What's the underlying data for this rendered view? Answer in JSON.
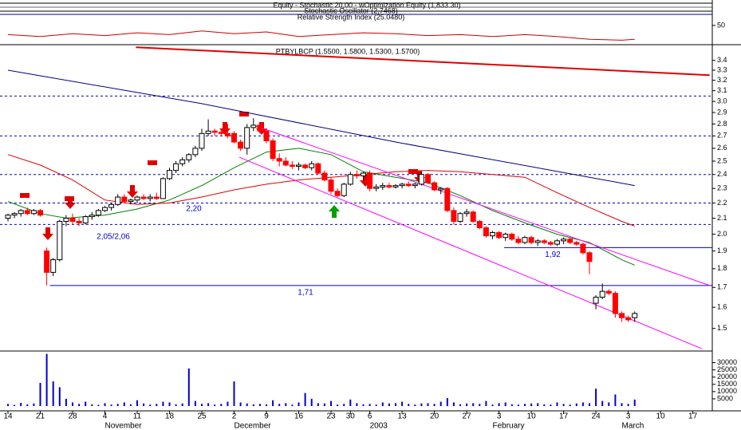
{
  "chart_data": [
    {
      "type": "line",
      "texts": [
        "Equity - Stochastic 20,00 - wOptimization Equity (1,833.30)",
        "Stochastic Oscillator (2,7468)",
        "Relative Strength Index (25.0480)"
      ],
      "x": [
        0,
        5,
        10,
        15,
        20,
        25,
        30,
        35,
        40,
        45,
        50,
        55,
        60,
        65,
        70,
        75,
        80,
        85,
        90,
        95,
        97
      ],
      "values": [
        40,
        38,
        41,
        39,
        42,
        40,
        44,
        41,
        43,
        38,
        40,
        42,
        41,
        39,
        40,
        38,
        40,
        38,
        35,
        34,
        35
      ],
      "color": "#cc0000",
      "ylim": [
        30,
        62
      ],
      "yticks": [
        50
      ]
    },
    {
      "type": "candlestick",
      "title": "PTBYLBCP (1.5500, 1.5800, 1.5300, 1.5700)",
      "categories": [
        "14",
        null,
        null,
        null,
        null,
        "21",
        null,
        null,
        null,
        null,
        "28",
        null,
        null,
        null,
        null,
        "4",
        null,
        null,
        null,
        null,
        "11",
        null,
        null,
        null,
        null,
        "18",
        null,
        null,
        null,
        null,
        "25",
        null,
        null,
        null,
        null,
        "2",
        null,
        null,
        null,
        null,
        "9",
        null,
        null,
        null,
        null,
        "16",
        null,
        null,
        null,
        null,
        "23",
        null,
        null,
        "30",
        null,
        null,
        "6",
        null,
        null,
        null,
        null,
        "13",
        null,
        null,
        null,
        null,
        "20",
        null,
        null,
        null,
        null,
        "27",
        null,
        null,
        null,
        null,
        "3",
        null,
        null,
        null,
        null,
        "10",
        null,
        null,
        null,
        null,
        "17",
        null,
        null,
        null,
        null,
        "24",
        null,
        null,
        null,
        null,
        "3",
        null,
        null,
        null,
        null,
        "10",
        null,
        null,
        null,
        null,
        "17",
        null
      ],
      "months": [
        null,
        null,
        null,
        null,
        null,
        null,
        null,
        null,
        null,
        null,
        null,
        null,
        null,
        null,
        null,
        "November",
        null,
        null,
        null,
        null,
        null,
        null,
        null,
        null,
        null,
        null,
        null,
        null,
        null,
        null,
        null,
        null,
        null,
        null,
        null,
        "December",
        null,
        null,
        null,
        null,
        null,
        null,
        null,
        null,
        null,
        null,
        null,
        null,
        null,
        null,
        null,
        null,
        null,
        null,
        null,
        null,
        "2003",
        null,
        null,
        null,
        null,
        null,
        null,
        null,
        null,
        null,
        null,
        null,
        null,
        null,
        null,
        null,
        null,
        null,
        null,
        "February",
        null,
        null,
        null,
        null,
        null,
        null,
        null,
        null,
        null,
        null,
        null,
        null,
        null,
        null,
        null,
        null,
        null,
        null,
        null,
        "March",
        null,
        null,
        null,
        null,
        null,
        null,
        null,
        null,
        null,
        null,
        null
      ],
      "open": [
        2.1,
        2.12,
        2.13,
        2.15,
        2.13,
        2.15,
        1.9,
        1.78,
        1.85,
        2.08,
        2.1,
        2.08,
        2.07,
        2.11,
        2.12,
        2.15,
        2.17,
        2.19,
        2.24,
        2.21,
        2.22,
        2.24,
        2.23,
        2.24,
        2.23,
        2.37,
        2.43,
        2.48,
        2.51,
        2.55,
        2.6,
        2.72,
        2.74,
        2.73,
        2.72,
        2.72,
        2.65,
        2.6,
        2.77,
        2.79,
        2.74,
        2.66,
        2.52,
        2.5,
        2.47,
        2.46,
        2.47,
        2.45,
        2.48,
        2.41,
        2.36,
        2.28,
        2.25,
        2.33,
        2.4,
        2.39,
        2.41,
        2.3,
        2.31,
        2.32,
        2.31,
        2.32,
        2.33,
        2.32,
        2.33,
        2.4,
        2.34,
        2.29,
        2.3,
        2.15,
        2.08,
        2.13,
        2.14,
        2.08,
        2.04,
        1.99,
        2.01,
        1.98,
        2.0,
        1.97,
        1.95,
        1.98,
        1.95,
        1.96,
        1.95,
        1.94,
        1.96,
        1.97,
        1.95,
        1.94,
        1.89,
        1.62,
        1.65,
        1.68,
        1.67,
        1.57,
        1.55,
        1.55,
        null,
        null,
        null,
        null,
        null,
        null,
        null,
        null,
        null,
        null
      ],
      "high": [
        2.13,
        2.14,
        2.16,
        2.17,
        2.16,
        2.16,
        1.92,
        1.86,
        2.09,
        2.12,
        2.13,
        2.1,
        2.12,
        2.14,
        2.16,
        2.18,
        2.2,
        2.26,
        2.26,
        2.23,
        2.25,
        2.26,
        2.26,
        2.27,
        2.38,
        2.45,
        2.5,
        2.53,
        2.56,
        2.62,
        2.76,
        2.84,
        2.76,
        2.75,
        2.8,
        2.74,
        2.67,
        2.8,
        2.85,
        2.81,
        2.76,
        2.68,
        2.56,
        2.53,
        2.5,
        2.49,
        2.48,
        2.5,
        2.49,
        2.43,
        2.38,
        2.3,
        2.34,
        2.42,
        2.43,
        2.42,
        2.43,
        2.33,
        2.34,
        2.34,
        2.33,
        2.34,
        2.35,
        2.34,
        2.42,
        2.41,
        2.35,
        2.31,
        2.31,
        2.17,
        2.14,
        2.16,
        2.15,
        2.09,
        2.05,
        2.02,
        2.02,
        2.01,
        2.01,
        1.99,
        1.99,
        1.99,
        1.97,
        1.97,
        1.96,
        1.97,
        1.98,
        1.98,
        1.96,
        1.95,
        1.9,
        1.66,
        1.72,
        1.69,
        1.68,
        1.58,
        1.56,
        1.58,
        null,
        null,
        null,
        null,
        null,
        null,
        null,
        null,
        null,
        null
      ],
      "low": [
        2.08,
        2.1,
        2.11,
        2.12,
        2.12,
        2.11,
        1.71,
        1.76,
        1.84,
        2.05,
        2.06,
        2.05,
        2.06,
        2.09,
        2.11,
        2.14,
        2.15,
        2.18,
        2.2,
        2.19,
        2.2,
        2.22,
        2.21,
        2.22,
        2.23,
        2.36,
        2.41,
        2.46,
        2.49,
        2.53,
        2.58,
        2.7,
        2.7,
        2.7,
        2.68,
        2.64,
        2.58,
        2.55,
        2.74,
        2.72,
        2.64,
        2.5,
        2.46,
        2.46,
        2.44,
        2.43,
        2.44,
        2.43,
        2.4,
        2.35,
        2.26,
        2.24,
        2.24,
        2.32,
        2.37,
        2.36,
        2.28,
        2.28,
        2.29,
        2.3,
        2.3,
        2.3,
        2.31,
        2.3,
        2.32,
        2.33,
        2.28,
        2.26,
        2.14,
        2.06,
        2.07,
        2.11,
        2.07,
        2.03,
        1.98,
        1.97,
        1.97,
        1.96,
        1.96,
        1.94,
        1.94,
        1.94,
        1.93,
        1.94,
        1.93,
        1.93,
        1.94,
        1.94,
        1.93,
        1.88,
        1.77,
        1.59,
        1.64,
        1.66,
        1.55,
        1.53,
        1.53,
        1.53,
        null,
        null,
        null,
        null,
        null,
        null,
        null,
        null,
        null,
        null
      ],
      "close": [
        2.12,
        2.13,
        2.15,
        2.13,
        2.15,
        2.12,
        1.78,
        1.85,
        2.08,
        2.1,
        2.08,
        2.07,
        2.11,
        2.12,
        2.15,
        2.17,
        2.19,
        2.24,
        2.21,
        2.22,
        2.24,
        2.23,
        2.24,
        2.23,
        2.37,
        2.43,
        2.48,
        2.51,
        2.55,
        2.6,
        2.72,
        2.74,
        2.73,
        2.72,
        2.7,
        2.65,
        2.6,
        2.77,
        2.79,
        2.74,
        2.66,
        2.52,
        2.5,
        2.47,
        2.46,
        2.47,
        2.45,
        2.48,
        2.41,
        2.36,
        2.28,
        2.25,
        2.33,
        2.4,
        2.39,
        2.41,
        2.3,
        2.31,
        2.32,
        2.31,
        2.32,
        2.33,
        2.32,
        2.33,
        2.4,
        2.34,
        2.29,
        2.3,
        2.15,
        2.08,
        2.13,
        2.14,
        2.08,
        2.04,
        1.99,
        2.01,
        1.98,
        2.0,
        1.97,
        1.95,
        1.98,
        1.95,
        1.96,
        1.95,
        1.94,
        1.96,
        1.97,
        1.95,
        1.94,
        1.89,
        1.84,
        1.65,
        1.68,
        1.67,
        1.57,
        1.55,
        1.54,
        1.57,
        null,
        null,
        null,
        null,
        null,
        null,
        null,
        null,
        null,
        null
      ],
      "up_color": "#ffffff",
      "down_color": "#ff0000",
      "ylim": [
        1.4,
        3.55
      ],
      "log_scale": true,
      "yticks": [
        1.5,
        1.6,
        1.7,
        1.8,
        1.9,
        {
          "value": 2,
          "label": "2.0"
        },
        2.1,
        2.2,
        2.3,
        2.4,
        2.5,
        2.6,
        2.7,
        2.8,
        2.9,
        {
          "value": 3,
          "label": "3.0"
        },
        3.1,
        3.2,
        3.3,
        3.4
      ],
      "hlines": [
        3.05,
        2.7,
        2.4,
        2.2,
        2.06
      ],
      "hline_color": "#0000cc",
      "levels": [
        {
          "value": 1.71,
          "label": "1,71"
        },
        {
          "value": 1.92,
          "label": "1,92"
        }
      ],
      "annotations": [
        "2,20",
        "2,05/2,06"
      ],
      "overlays": [
        {
          "color": "#008000",
          "width": 1,
          "x": [
            0,
            5,
            9,
            15,
            20,
            25,
            30,
            35,
            40,
            45,
            50,
            55,
            60,
            65,
            70,
            75,
            80,
            85,
            90,
            95,
            97
          ],
          "values": [
            2.21,
            2.13,
            2.1,
            2.12,
            2.16,
            2.22,
            2.32,
            2.45,
            2.57,
            2.6,
            2.55,
            2.42,
            2.38,
            2.34,
            2.25,
            2.15,
            2.07,
            2.0,
            1.95,
            1.85,
            1.82
          ]
        },
        {
          "color": "#e00000",
          "width": 1,
          "x": [
            0,
            5,
            10,
            15,
            20,
            25,
            30,
            35,
            40,
            45,
            50,
            55,
            60,
            65,
            70,
            75,
            80,
            85,
            90,
            95,
            97
          ],
          "values": [
            2.55,
            2.47,
            2.36,
            2.22,
            2.19,
            2.2,
            2.24,
            2.29,
            2.33,
            2.36,
            2.38,
            2.4,
            2.42,
            2.43,
            2.42,
            2.4,
            2.38,
            2.27,
            2.17,
            2.08,
            2.05
          ]
        },
        {
          "color": "#000080",
          "width": 1,
          "x": [
            0,
            30,
            60,
            90,
            97
          ],
          "values": [
            3.3,
            2.98,
            2.65,
            2.38,
            2.32
          ]
        },
        {
          "color": "#e00000",
          "width": 2,
          "x": [
            19.8,
            108.6
          ],
          "values": [
            3.54,
            3.25
          ]
        },
        {
          "color": "#ff00ff",
          "width": 1,
          "x": [
            38,
            108.6
          ],
          "values": [
            2.79,
            1.71
          ]
        },
        {
          "color": "#ff00ff",
          "width": 1,
          "x": [
            35.8,
            107.4
          ],
          "values": [
            2.53,
            1.41
          ]
        }
      ]
    },
    {
      "type": "bar",
      "values": [
        1500,
        800,
        2200,
        1200,
        1800,
        16000,
        36000,
        17000,
        13000,
        5000,
        2500,
        1500,
        3000,
        1200,
        800,
        2000,
        1000,
        1500,
        2500,
        1200,
        4000,
        1800,
        1000,
        1500,
        3000,
        2500,
        1200,
        1800,
        26000,
        3500,
        1500,
        2000,
        1000,
        1500,
        3000,
        17000,
        2500,
        1800,
        1200,
        1500,
        1200,
        4000,
        1500,
        2000,
        1000,
        2500,
        9000,
        5000,
        2000,
        1800,
        3500,
        1000,
        1500,
        4500,
        2000,
        1200,
        1500,
        1000,
        2500,
        1800,
        2000,
        3000,
        1500,
        1000,
        1800,
        2000,
        1500,
        3000,
        5500,
        2500,
        1200,
        1800,
        2000,
        1500,
        3500,
        1000,
        2000,
        2500,
        1200,
        1000,
        1500,
        1800,
        2000,
        1200,
        1000,
        2500,
        1500,
        1000,
        1800,
        2500,
        2000,
        12000,
        3500,
        2500,
        8000,
        2000,
        1500,
        4500,
        null,
        null,
        null,
        null,
        null,
        null,
        null,
        null,
        null,
        null
      ],
      "color": "#0000cc",
      "ylim": [
        0,
        38000
      ],
      "yticks": [
        5000,
        10000,
        15000,
        20000,
        25000,
        30000
      ]
    }
  ]
}
